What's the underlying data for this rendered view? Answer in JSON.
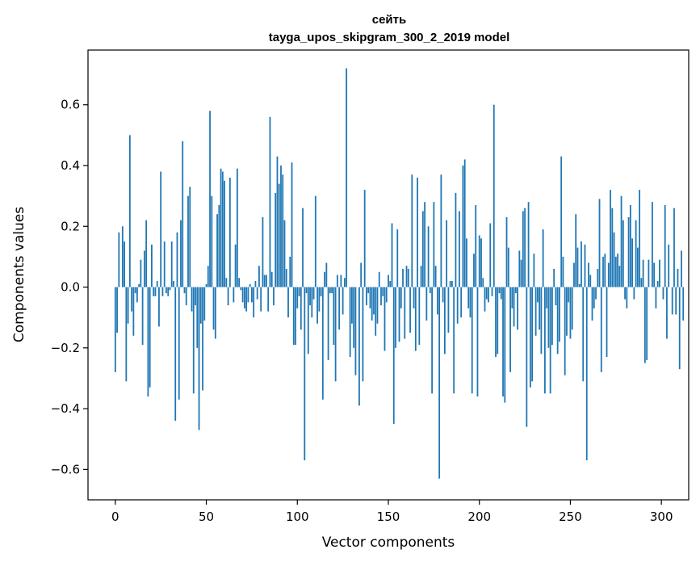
{
  "chart_data": {
    "type": "bar",
    "title": "сейть",
    "subtitle": "tayga_upos_skipgram_300_2_2019 model",
    "xlabel": "Vector components",
    "ylabel": "Components values",
    "xlim": [
      -15,
      315
    ],
    "ylim": [
      -0.7,
      0.78
    ],
    "xticks": [
      0,
      50,
      100,
      150,
      200,
      250,
      300
    ],
    "xtick_labels": [
      "0",
      "50",
      "100",
      "150",
      "200",
      "250",
      "300"
    ],
    "yticks": [
      -0.6,
      -0.4,
      -0.2,
      0.0,
      0.2,
      0.4,
      0.6
    ],
    "ytick_labels": [
      "−0.6",
      "−0.4",
      "−0.2",
      "0.0",
      "0.2",
      "0.4",
      "0.6"
    ],
    "bar_color": "#1f77b4",
    "grid": false,
    "values": [
      -0.28,
      -0.15,
      0.18,
      0.0,
      0.2,
      0.15,
      -0.31,
      -0.12,
      0.5,
      -0.08,
      -0.16,
      -0.02,
      -0.05,
      0.01,
      0.09,
      -0.19,
      0.12,
      0.22,
      -0.36,
      -0.33,
      0.14,
      -0.03,
      -0.03,
      0.02,
      -0.13,
      0.38,
      -0.03,
      0.15,
      -0.02,
      -0.03,
      -0.01,
      0.15,
      0.02,
      -0.44,
      0.18,
      -0.37,
      0.22,
      0.48,
      -0.02,
      -0.06,
      0.3,
      0.33,
      -0.08,
      -0.35,
      -0.06,
      -0.2,
      -0.47,
      -0.12,
      -0.34,
      -0.11,
      0.01,
      0.07,
      0.58,
      0.3,
      -0.14,
      -0.17,
      0.24,
      0.27,
      0.39,
      0.38,
      0.35,
      0.03,
      -0.06,
      0.36,
      0.0,
      -0.05,
      0.14,
      0.39,
      0.03,
      -0.01,
      -0.05,
      -0.07,
      -0.08,
      -0.05,
      0.01,
      -0.05,
      -0.1,
      0.02,
      -0.04,
      0.07,
      -0.08,
      0.23,
      0.04,
      0.04,
      -0.08,
      0.56,
      0.05,
      -0.06,
      0.31,
      0.43,
      0.34,
      0.4,
      0.37,
      0.22,
      0.06,
      -0.1,
      0.1,
      0.41,
      -0.19,
      -0.19,
      -0.07,
      -0.03,
      -0.14,
      0.26,
      -0.57,
      -0.02,
      -0.22,
      -0.06,
      -0.1,
      -0.04,
      0.3,
      -0.12,
      -0.08,
      -0.03,
      -0.37,
      0.05,
      0.08,
      -0.24,
      -0.02,
      -0.02,
      -0.19,
      -0.31,
      0.04,
      -0.14,
      0.04,
      -0.09,
      0.03,
      0.72,
      0.0,
      -0.23,
      -0.12,
      -0.2,
      -0.29,
      0.0,
      -0.39,
      0.08,
      -0.31,
      0.32,
      -0.06,
      -0.02,
      -0.07,
      -0.11,
      -0.09,
      -0.16,
      -0.12,
      0.05,
      -0.06,
      -0.03,
      -0.21,
      -0.05,
      0.04,
      0.02,
      0.21,
      -0.45,
      -0.2,
      0.19,
      -0.18,
      -0.07,
      0.06,
      -0.17,
      0.07,
      0.06,
      -0.15,
      0.37,
      -0.07,
      -0.21,
      0.36,
      -0.19,
      0.07,
      0.25,
      0.28,
      -0.11,
      0.2,
      -0.02,
      -0.35,
      0.28,
      0.07,
      -0.09,
      -0.63,
      0.37,
      -0.05,
      -0.22,
      0.22,
      -0.15,
      0.02,
      0.02,
      -0.35,
      0.31,
      -0.12,
      0.25,
      -0.1,
      0.4,
      0.42,
      0.16,
      -0.07,
      -0.1,
      -0.35,
      0.11,
      0.27,
      -0.36,
      0.17,
      0.16,
      0.03,
      -0.08,
      -0.04,
      -0.05,
      0.21,
      -0.03,
      0.6,
      -0.23,
      -0.22,
      -0.02,
      -0.04,
      -0.36,
      -0.38,
      0.23,
      0.13,
      -0.28,
      -0.07,
      -0.13,
      -0.02,
      -0.14,
      0.12,
      0.09,
      0.25,
      0.26,
      -0.46,
      0.28,
      -0.33,
      -0.31,
      0.11,
      -0.16,
      -0.05,
      -0.14,
      -0.22,
      0.19,
      -0.35,
      -0.07,
      -0.2,
      -0.35,
      -0.19,
      0.06,
      -0.06,
      -0.22,
      -0.18,
      0.43,
      0.1,
      -0.29,
      -0.16,
      -0.05,
      -0.17,
      -0.14,
      0.08,
      0.24,
      0.13,
      0.01,
      0.15,
      -0.31,
      0.14,
      -0.57,
      0.08,
      0.04,
      -0.11,
      -0.07,
      -0.04,
      0.06,
      0.29,
      -0.28,
      0.1,
      0.11,
      -0.23,
      0.08,
      0.32,
      0.26,
      0.18,
      0.1,
      0.11,
      0.07,
      0.3,
      0.22,
      -0.04,
      -0.07,
      0.23,
      0.27,
      0.16,
      -0.04,
      0.22,
      0.13,
      0.32,
      0.03,
      0.09,
      -0.25,
      -0.24,
      0.09,
      0.0,
      0.28,
      0.08,
      -0.07,
      0.02,
      0.09,
      0.0,
      -0.04,
      0.27,
      -0.17,
      0.14,
      0.0,
      -0.09,
      0.26,
      -0.09,
      0.06,
      -0.27,
      0.12,
      -0.11
    ]
  }
}
